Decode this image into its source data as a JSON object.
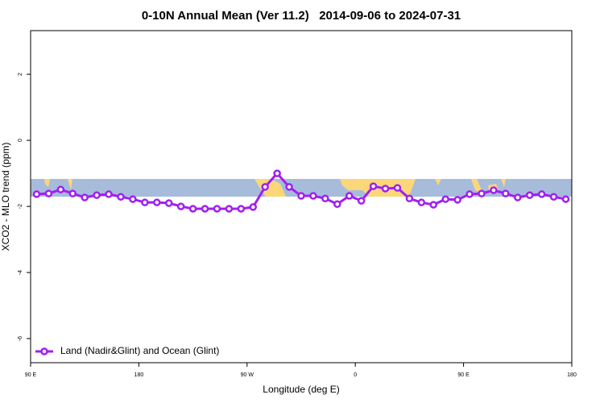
{
  "chart_data": {
    "type": "line",
    "title": "0-10N Annual Mean (Ver 11.2)   2014-09-06 to 2024-07-31",
    "x_label": "Longitude (deg E)",
    "y_label": "XCO2 - MLO trend (ppm)",
    "x": [
      95,
      105,
      115,
      125,
      135,
      145,
      155,
      165,
      175,
      185,
      195,
      205,
      215,
      225,
      235,
      245,
      255,
      265,
      275,
      285,
      295,
      305,
      315,
      325,
      335,
      345,
      355,
      365,
      375,
      385,
      395,
      405,
      415,
      425,
      435,
      445,
      455,
      465,
      475,
      485,
      495,
      505,
      515,
      525,
      535
    ],
    "series": [
      {
        "name": "Land (Nadir&Glint) and Ocean (Glint)",
        "color": "#a020f0",
        "values": [
          -1.63,
          -1.61,
          -1.49,
          -1.61,
          -1.73,
          -1.66,
          -1.63,
          -1.71,
          -1.78,
          -1.88,
          -1.88,
          -1.9,
          -2.0,
          -2.07,
          -2.07,
          -2.07,
          -2.07,
          -2.07,
          -2.02,
          -1.41,
          -1.0,
          -1.41,
          -1.68,
          -1.68,
          -1.76,
          -1.93,
          -1.68,
          -1.83,
          -1.39,
          -1.46,
          -1.44,
          -1.76,
          -1.88,
          -1.95,
          -1.78,
          -1.8,
          -1.63,
          -1.61,
          -1.51,
          -1.61,
          -1.73,
          -1.66,
          -1.63,
          -1.71,
          -1.78
        ]
      }
    ],
    "xlim": [
      90,
      540
    ],
    "xticks": [
      {
        "value": 90,
        "label": "90 E"
      },
      {
        "value": 180,
        "label": "180"
      },
      {
        "value": 270,
        "label": "90 W"
      },
      {
        "value": 360,
        "label": "0"
      },
      {
        "value": 450,
        "label": "90 E"
      },
      {
        "value": 540,
        "label": "180"
      }
    ],
    "ylim": [
      -6.73,
      3.32
    ],
    "yticks": [
      -6,
      -4,
      -2,
      0,
      2
    ],
    "legend": "bottom-left"
  }
}
